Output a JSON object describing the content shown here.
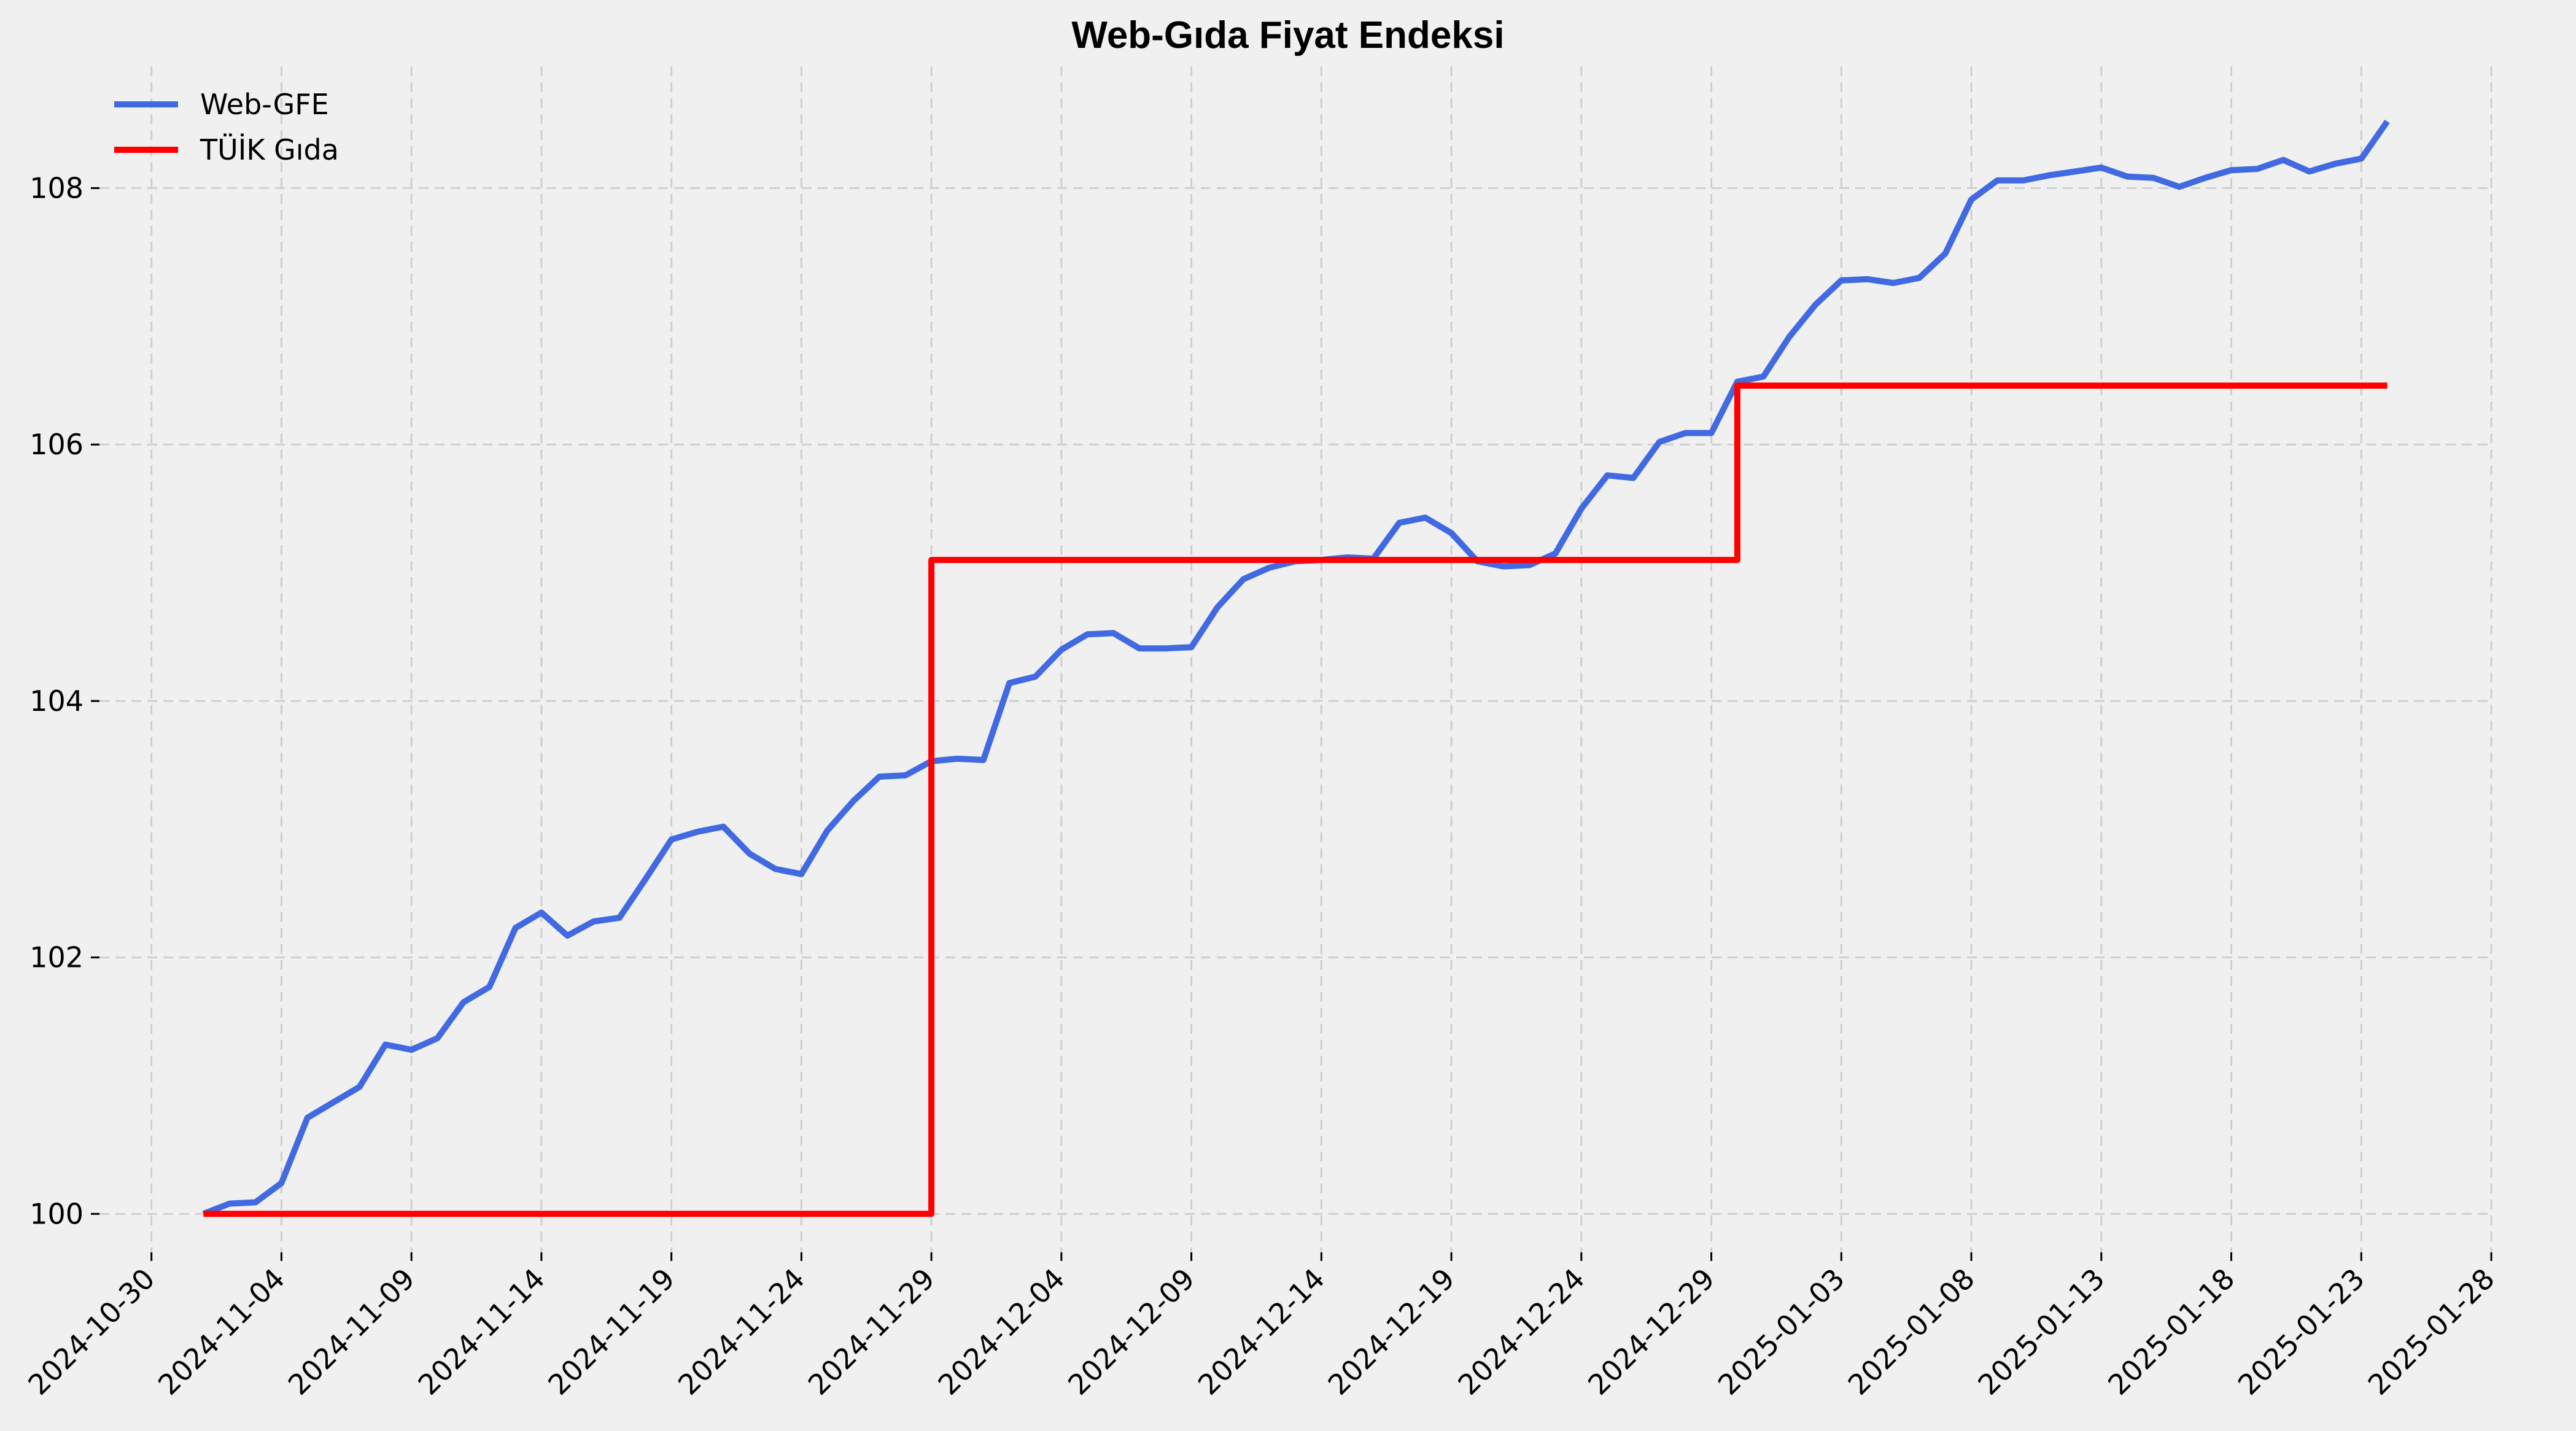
{
  "chart_data": {
    "type": "line",
    "title": "Web-Gıda Fiyat Endeksi",
    "xlabel": "",
    "ylabel": "",
    "xlim": [
      "2024-10-28",
      "2025-01-28"
    ],
    "ylim": [
      99.7,
      108.95
    ],
    "x_ticks": [
      "2024-10-30",
      "2024-11-04",
      "2024-11-09",
      "2024-11-14",
      "2024-11-19",
      "2024-11-24",
      "2024-11-29",
      "2024-12-04",
      "2024-12-09",
      "2024-12-14",
      "2024-12-19",
      "2024-12-24",
      "2024-12-29",
      "2025-01-03",
      "2025-01-08",
      "2025-01-13",
      "2025-01-18",
      "2025-01-23",
      "2025-01-28"
    ],
    "y_ticks": [
      100,
      102,
      104,
      106,
      108
    ],
    "grid": true,
    "legend_position": "top-left",
    "series": [
      {
        "name": "Web-GFE",
        "color": "#4169e1",
        "style": "line",
        "x": [
          "2024-11-01",
          "2024-11-02",
          "2024-11-03",
          "2024-11-04",
          "2024-11-05",
          "2024-11-06",
          "2024-11-07",
          "2024-11-08",
          "2024-11-09",
          "2024-11-10",
          "2024-11-11",
          "2024-11-12",
          "2024-11-13",
          "2024-11-14",
          "2024-11-15",
          "2024-11-16",
          "2024-11-17",
          "2024-11-18",
          "2024-11-19",
          "2024-11-20",
          "2024-11-21",
          "2024-11-22",
          "2024-11-23",
          "2024-11-24",
          "2024-11-25",
          "2024-11-26",
          "2024-11-27",
          "2024-11-28",
          "2024-11-29",
          "2024-11-30",
          "2024-12-01",
          "2024-12-02",
          "2024-12-03",
          "2024-12-04",
          "2024-12-05",
          "2024-12-06",
          "2024-12-07",
          "2024-12-08",
          "2024-12-09",
          "2024-12-10",
          "2024-12-11",
          "2024-12-12",
          "2024-12-13",
          "2024-12-14",
          "2024-12-15",
          "2024-12-16",
          "2024-12-17",
          "2024-12-18",
          "2024-12-19",
          "2024-12-20",
          "2024-12-21",
          "2024-12-22",
          "2024-12-23",
          "2024-12-24",
          "2024-12-25",
          "2024-12-26",
          "2024-12-27",
          "2024-12-28",
          "2024-12-29",
          "2024-12-30",
          "2024-12-31",
          "2025-01-01",
          "2025-01-02",
          "2025-01-03",
          "2025-01-04",
          "2025-01-05",
          "2025-01-06",
          "2025-01-07",
          "2025-01-08",
          "2025-01-09",
          "2025-01-10",
          "2025-01-11",
          "2025-01-12",
          "2025-01-13",
          "2025-01-14",
          "2025-01-15",
          "2025-01-16",
          "2025-01-17",
          "2025-01-18",
          "2025-01-19",
          "2025-01-20",
          "2025-01-21",
          "2025-01-22",
          "2025-01-23",
          "2025-01-24"
        ],
        "y": [
          100.0,
          100.08,
          100.09,
          100.24,
          100.75,
          100.87,
          100.99,
          101.32,
          101.28,
          101.37,
          101.65,
          101.77,
          102.23,
          102.35,
          102.17,
          102.28,
          102.31,
          102.61,
          102.92,
          102.98,
          103.02,
          102.81,
          102.69,
          102.65,
          102.99,
          103.22,
          103.41,
          103.42,
          103.53,
          103.55,
          103.54,
          104.14,
          104.19,
          104.4,
          104.52,
          104.53,
          104.41,
          104.41,
          104.42,
          104.73,
          104.95,
          105.04,
          105.09,
          105.1,
          105.12,
          105.11,
          105.39,
          105.43,
          105.31,
          105.09,
          105.05,
          105.06,
          105.15,
          105.5,
          105.76,
          105.74,
          106.02,
          106.09,
          106.09,
          106.49,
          106.53,
          106.84,
          107.09,
          107.28,
          107.29,
          107.26,
          107.3,
          107.49,
          107.91,
          108.06,
          108.06,
          108.1,
          108.13,
          108.16,
          108.09,
          108.08,
          108.01,
          108.08,
          108.14,
          108.15,
          108.22,
          108.13,
          108.19,
          108.23,
          108.52
        ]
      },
      {
        "name": "TÜİK Gıda",
        "color": "#ff0000",
        "style": "step-post",
        "x": [
          "2024-11-01",
          "2024-11-29",
          "2024-12-30",
          "2025-01-24"
        ],
        "y": [
          100.0,
          105.1,
          106.46,
          106.46
        ]
      }
    ]
  }
}
